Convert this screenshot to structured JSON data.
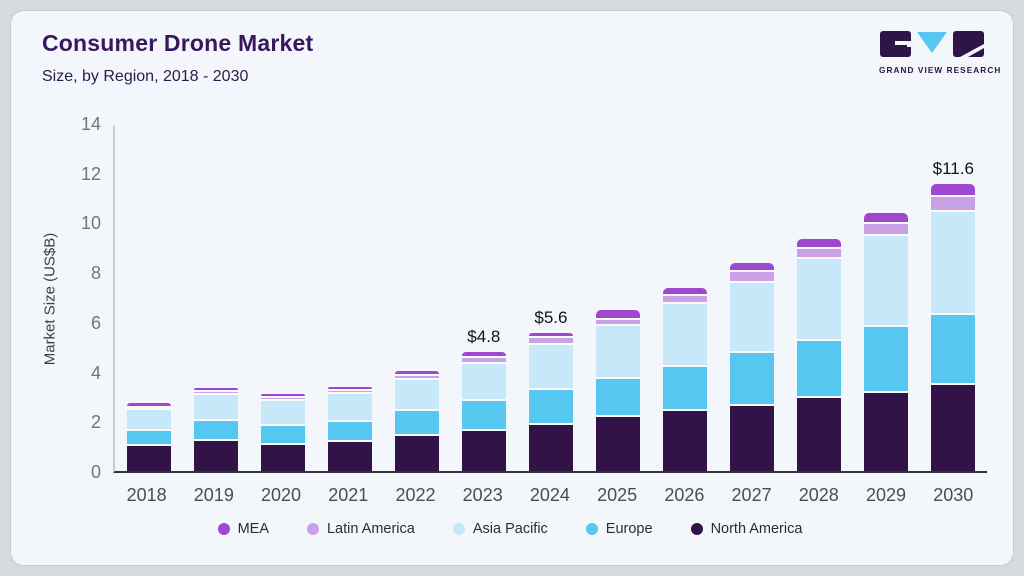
{
  "logo": {
    "text": "GRAND VIEW RESEARCH",
    "purple": "#2e1547",
    "cyan": "#58c6ef"
  },
  "chart_data": {
    "type": "bar",
    "stacked": true,
    "title": "Consumer Drone Market",
    "subtitle": "Size, by Region, 2018 - 2030",
    "ylabel": "Market Size (US$B)",
    "xlabel": "",
    "ylim": [
      0,
      14
    ],
    "yticks": [
      0,
      2,
      4,
      6,
      8,
      10,
      12,
      14
    ],
    "grid": false,
    "legend_position": "bottom",
    "categories": [
      "2018",
      "2019",
      "2020",
      "2021",
      "2022",
      "2023",
      "2024",
      "2025",
      "2026",
      "2027",
      "2028",
      "2029",
      "2030"
    ],
    "series": [
      {
        "name": "North America",
        "color": "#311347",
        "values": [
          1.1,
          1.3,
          1.15,
          1.26,
          1.5,
          1.7,
          1.95,
          2.25,
          2.5,
          2.7,
          3.05,
          3.25,
          3.55
        ]
      },
      {
        "name": "Europe",
        "color": "#55c7f0",
        "values": [
          0.6,
          0.8,
          0.75,
          0.82,
          1.0,
          1.2,
          1.4,
          1.55,
          1.8,
          2.15,
          2.3,
          2.65,
          2.85
        ]
      },
      {
        "name": "Asia Pacific",
        "color": "#c6e8f8",
        "values": [
          0.85,
          1.05,
          1.0,
          1.1,
          1.25,
          1.5,
          1.85,
          2.15,
          2.55,
          2.85,
          3.3,
          3.7,
          4.15
        ]
      },
      {
        "name": "Latin America",
        "color": "#c9a2e6",
        "values": [
          0.1,
          0.13,
          0.12,
          0.13,
          0.18,
          0.25,
          0.25,
          0.25,
          0.33,
          0.42,
          0.4,
          0.48,
          0.6
        ]
      },
      {
        "name": "MEA",
        "color": "#9f48cf",
        "values": [
          0.1,
          0.1,
          0.08,
          0.09,
          0.12,
          0.15,
          0.15,
          0.3,
          0.22,
          0.28,
          0.35,
          0.37,
          0.45
        ]
      }
    ],
    "totals": [
      2.75,
      3.38,
      3.1,
      3.4,
      4.05,
      4.8,
      5.6,
      6.5,
      7.4,
      8.4,
      9.4,
      10.45,
      11.6
    ],
    "bar_labels": {
      "2023": "$4.8",
      "2024": "$5.6",
      "2030": "$11.6"
    }
  }
}
